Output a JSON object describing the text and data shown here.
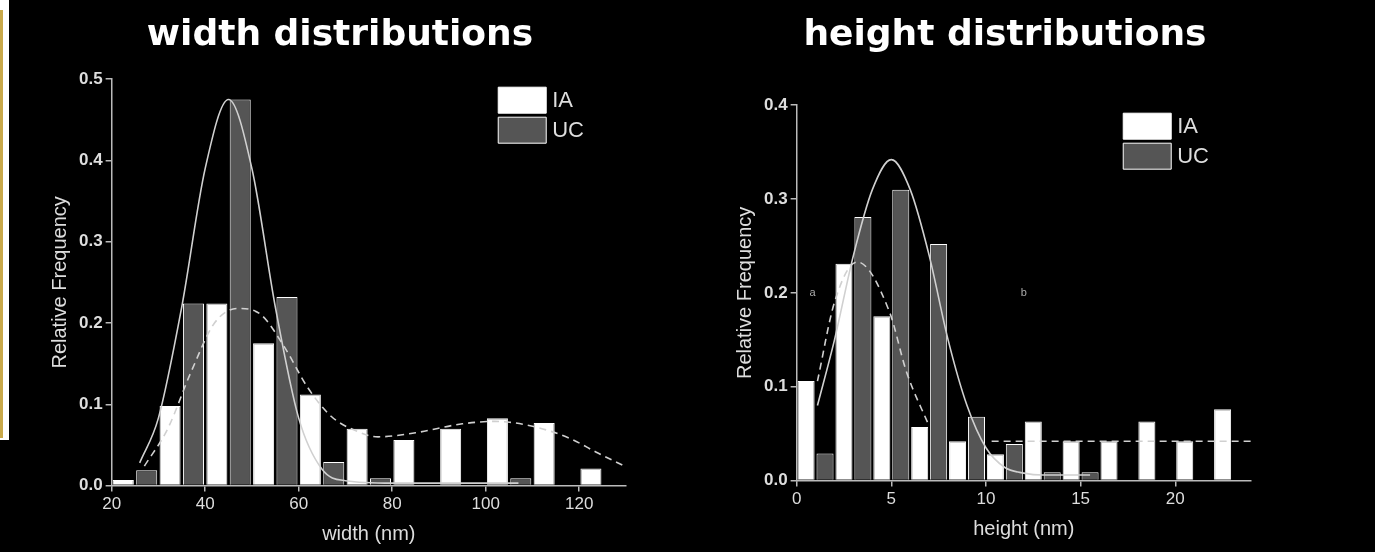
{
  "chart_data": [
    {
      "type": "bar",
      "title": "width distributions",
      "xlabel": "width (nm)",
      "ylabel": "Relative Frequency",
      "x": [
        25,
        35,
        45,
        55,
        65,
        75,
        85,
        95,
        105,
        115,
        125
      ],
      "xlim": [
        20,
        130
      ],
      "xticks": [
        20,
        40,
        60,
        80,
        100,
        120
      ],
      "ylim": [
        0,
        0.5
      ],
      "yticks": [
        {
          "value": 0,
          "label": "0.0"
        },
        0.1,
        0.2,
        0.3,
        0.4,
        0.5
      ],
      "legend": "top right",
      "grid": false,
      "marker": "none",
      "series": [
        {
          "name": "IA",
          "color": "#ffffff",
          "values": [
            0.007,
            0.098,
            0.224,
            0.175,
            0.112,
            0.07,
            0.056,
            0.07,
            0.083,
            0.077,
            0.021
          ]
        },
        {
          "name": "UC",
          "color": "#555555",
          "values": [
            0.019,
            0.224,
            0.475,
            0.232,
            0.029,
            0.009,
            null,
            null,
            0.009,
            null,
            null
          ]
        },
        {
          "type": "line",
          "color": "#d0d0d0",
          "line_style": "solid",
          "x": [
            26,
            30,
            35,
            40,
            45,
            50,
            55,
            60,
            65,
            70,
            80,
            107
          ],
          "values": [
            0.028,
            0.083,
            0.22,
            0.39,
            0.475,
            0.39,
            0.22,
            0.083,
            0.02,
            0.006,
            0.003,
            0.003
          ]
        },
        {
          "type": "line",
          "color": "#d0d0d0",
          "line_style": "dashed",
          "x": [
            27,
            32,
            37,
            42,
            47,
            52,
            57,
            62,
            67,
            72,
            77,
            85,
            95,
            102,
            110,
            118,
            124,
            130
          ],
          "values": [
            0.024,
            0.07,
            0.14,
            0.2,
            0.218,
            0.21,
            0.17,
            0.12,
            0.085,
            0.068,
            0.06,
            0.065,
            0.076,
            0.079,
            0.073,
            0.058,
            0.04,
            0.023
          ]
        }
      ]
    },
    {
      "type": "bar",
      "title": "height distributions",
      "xlabel": "height (nm)",
      "ylabel": "Relative Frequency",
      "x": [
        1,
        3,
        5,
        7,
        9,
        11,
        13,
        15,
        17,
        19,
        21,
        23
      ],
      "xlim": [
        0,
        24
      ],
      "xticks": [
        0,
        5,
        10,
        15,
        20
      ],
      "ylim": [
        0,
        0.4
      ],
      "yticks": [
        {
          "value": 0,
          "label": "0.0"
        },
        0.1,
        0.2,
        0.3,
        0.4
      ],
      "legend": "top right",
      "grid": false,
      "marker": "none",
      "annotations": [
        "a",
        "b"
      ],
      "series": [
        {
          "name": "IA",
          "color": "#ffffff",
          "values": [
            0.106,
            0.231,
            0.175,
            0.057,
            0.042,
            0.028,
            0.063,
            0.042,
            0.042,
            0.063,
            0.042,
            0.076
          ]
        },
        {
          "name": "UC",
          "color": "#555555",
          "values": [
            0.029,
            0.281,
            0.31,
            0.252,
            0.068,
            0.039,
            0.009,
            0.009,
            null,
            null,
            null,
            null
          ]
        },
        {
          "type": "line",
          "color": "#d0d0d0",
          "line_style": "solid",
          "x": [
            1.1,
            2,
            3,
            4,
            5,
            6,
            7,
            8,
            9,
            10,
            11,
            12,
            13,
            15.5
          ],
          "values": [
            0.08,
            0.15,
            0.24,
            0.31,
            0.342,
            0.31,
            0.24,
            0.15,
            0.08,
            0.035,
            0.014,
            0.008,
            0.006,
            0.006
          ]
        },
        {
          "type": "line",
          "color": "#d0d0d0",
          "line_style": "dashed",
          "x": [
            1.1,
            2,
            3.2,
            4.9,
            5.8,
            7
          ],
          "values": [
            0.106,
            0.19,
            0.233,
            0.18,
            0.116,
            0.058
          ]
        },
        {
          "type": "line",
          "color": "#d0d0d0",
          "line_style": "dashed",
          "x": [
            10.3,
            24
          ],
          "values": [
            0.042,
            0.042
          ]
        }
      ]
    }
  ]
}
